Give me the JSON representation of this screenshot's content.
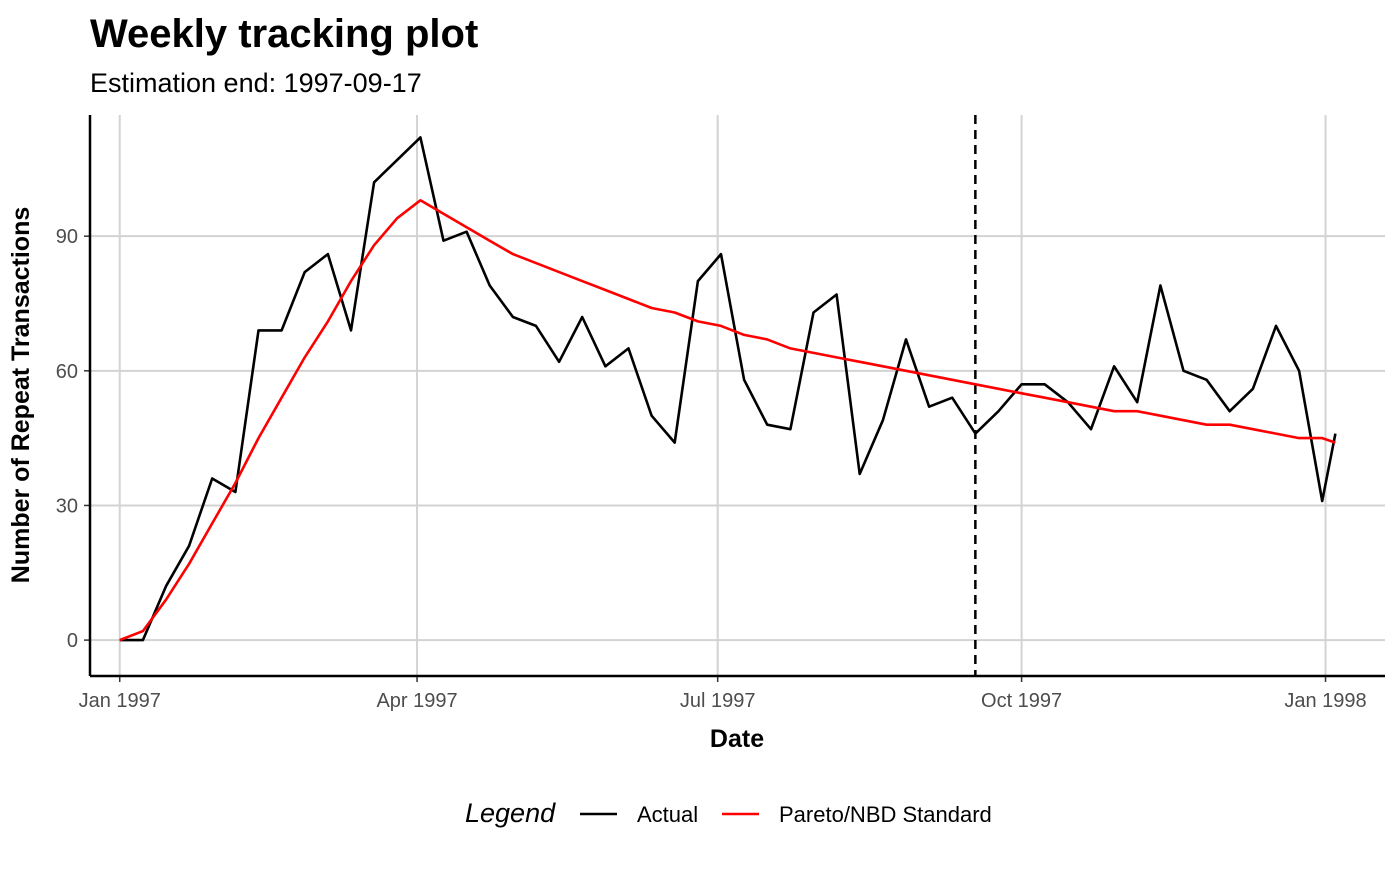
{
  "chart_data": {
    "type": "line",
    "title": "Weekly tracking plot",
    "subtitle": "Estimation end: 1997-09-17",
    "xlabel": "Date",
    "ylabel": "Number of Repeat Transactions",
    "x_range": [
      "1996-12-23",
      "1998-01-19"
    ],
    "ylim": [
      -8,
      117
    ],
    "x_ticks": [
      {
        "date": "1997-01-01",
        "label": "Jan 1997"
      },
      {
        "date": "1997-04-01",
        "label": "Apr 1997"
      },
      {
        "date": "1997-07-01",
        "label": "Jul 1997"
      },
      {
        "date": "1997-10-01",
        "label": "Oct 1997"
      },
      {
        "date": "1998-01-01",
        "label": "Jan 1998"
      }
    ],
    "y_ticks": [
      0,
      30,
      60,
      90
    ],
    "grid": true,
    "estimation_end": "1997-09-17",
    "legend": {
      "title": "Legend",
      "position": "bottom"
    },
    "colors": {
      "actual": "#000000",
      "model": "#ff0000",
      "grid": "#d3d3d3"
    },
    "dates": [
      "1997-01-01",
      "1997-01-08",
      "1997-01-15",
      "1997-01-22",
      "1997-01-29",
      "1997-02-05",
      "1997-02-12",
      "1997-02-19",
      "1997-02-26",
      "1997-03-05",
      "1997-03-12",
      "1997-03-19",
      "1997-03-26",
      "1997-04-02",
      "1997-04-09",
      "1997-04-16",
      "1997-04-23",
      "1997-04-30",
      "1997-05-07",
      "1997-05-14",
      "1997-05-21",
      "1997-05-28",
      "1997-06-04",
      "1997-06-11",
      "1997-06-18",
      "1997-06-25",
      "1997-07-02",
      "1997-07-09",
      "1997-07-16",
      "1997-07-23",
      "1997-07-30",
      "1997-08-06",
      "1997-08-13",
      "1997-08-20",
      "1997-08-27",
      "1997-09-03",
      "1997-09-10",
      "1997-09-17",
      "1997-09-24",
      "1997-10-01",
      "1997-10-08",
      "1997-10-15",
      "1997-10-22",
      "1997-10-29",
      "1997-11-05",
      "1997-11-12",
      "1997-11-19",
      "1997-11-26",
      "1997-12-03",
      "1997-12-10",
      "1997-12-17",
      "1997-12-24",
      "1997-12-31",
      "1998-01-04"
    ],
    "series": [
      {
        "name": "Actual",
        "values": [
          0,
          0,
          12,
          21,
          36,
          33,
          69,
          69,
          82,
          86,
          69,
          102,
          107,
          112,
          89,
          91,
          79,
          72,
          70,
          62,
          72,
          61,
          65,
          50,
          44,
          80,
          86,
          58,
          48,
          47,
          73,
          77,
          37,
          49,
          67,
          52,
          54,
          46,
          51,
          57,
          57,
          53,
          47,
          61,
          53,
          79,
          60,
          58,
          51,
          56,
          70,
          60,
          31,
          46
        ]
      },
      {
        "name": "Pareto/NBD Standard",
        "values": [
          0,
          2,
          9,
          17,
          26,
          35,
          45,
          54,
          63,
          71,
          80,
          88,
          94,
          98,
          95,
          92,
          89,
          86,
          84,
          82,
          80,
          78,
          76,
          74,
          73,
          71,
          70,
          68,
          67,
          65,
          64,
          63,
          62,
          61,
          60,
          59,
          58,
          57,
          56,
          55,
          54,
          53,
          52,
          51,
          51,
          50,
          49,
          48,
          48,
          47,
          46,
          45,
          45,
          44
        ]
      }
    ]
  }
}
